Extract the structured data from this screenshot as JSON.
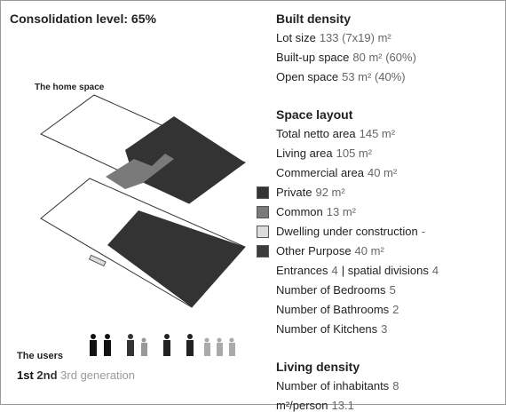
{
  "title": "Consolidation level: 65%",
  "home_space_label": "The home space",
  "users": {
    "label": "The users",
    "generations": [
      "1st",
      "2nd",
      "3rd generation"
    ]
  },
  "sections": [
    {
      "heading": "Built density",
      "rows": [
        {
          "label": "Lot size",
          "value": "133 (7x19) m²"
        },
        {
          "label": "Built-up space",
          "value": "80 m² (60%)"
        },
        {
          "label": "Open space",
          "value": "53 m² (40%)"
        }
      ]
    },
    {
      "heading": "Space layout",
      "rows": [
        {
          "label": "Total netto area",
          "value": "145 m²"
        },
        {
          "label": "Living area",
          "value": "105 m²"
        },
        {
          "label": "Commercial area",
          "value": "40 m²"
        },
        {
          "label": "Private",
          "value": "92 m²",
          "color": "#333333"
        },
        {
          "label": "Common",
          "value": "13 m²",
          "color": "#7a7a7a"
        },
        {
          "label": "Dwelling under construction",
          "value": "-",
          "color": "#dddddd"
        },
        {
          "label": "Other Purpose",
          "value": "40 m²",
          "color": "#3c3c3c"
        },
        {
          "label": "Entrances",
          "value": "4",
          "label2": "| spatial divisions",
          "value2": "4"
        },
        {
          "label": "Number of Bedrooms",
          "value": "5"
        },
        {
          "label": "Number of Bathrooms",
          "value": "2"
        },
        {
          "label": "Number of Kitchens",
          "value": "3"
        }
      ]
    },
    {
      "heading": "Living density",
      "rows": [
        {
          "label": "Number of inhabitants",
          "value": "8"
        },
        {
          "label": "m²/person",
          "value": "13.1"
        }
      ]
    }
  ]
}
